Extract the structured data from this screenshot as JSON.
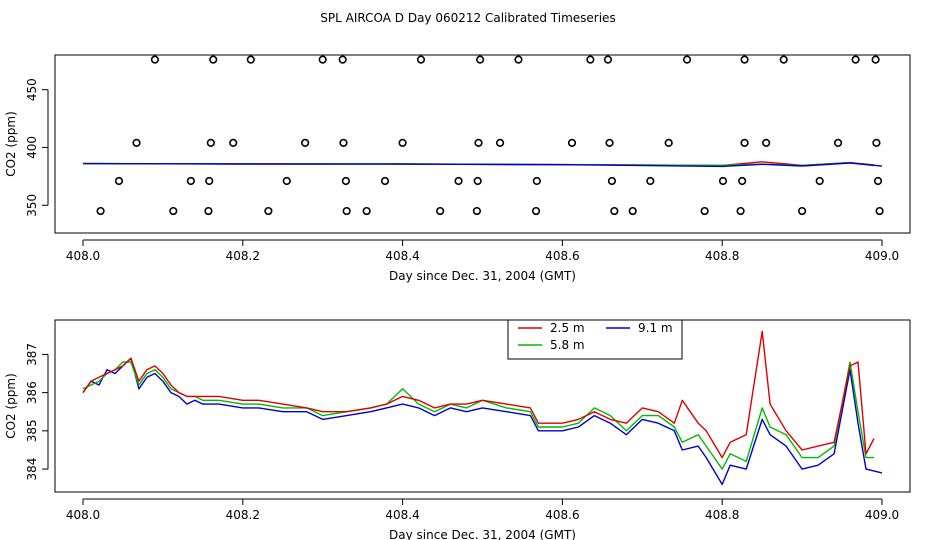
{
  "figure": {
    "title": "SPL AIRCOA D  Day 060212  Calibrated Timeseries"
  },
  "colors": {
    "2.5 m": "#dd0000",
    "5.8 m": "#00bb00",
    "9.1 m": "#0000cc",
    "axis": "#000000",
    "marker": "#000000"
  },
  "chart_data": [
    {
      "type": "scatter",
      "title": "",
      "xlabel": "Day since Dec. 31, 2004 (GMT)",
      "ylabel": "CO2 (ppm)",
      "xlim": [
        408.0,
        409.0
      ],
      "ylim": [
        326,
        480
      ],
      "xticks": [
        408.0,
        408.2,
        408.4,
        408.6,
        408.8,
        409.0
      ],
      "xtick_labels": [
        "408.0",
        "408.2",
        "408.4",
        "408.6",
        "408.8",
        "409.0"
      ],
      "yticks": [
        350,
        400,
        450
      ],
      "ytick_labels": [
        "350",
        "400",
        "450"
      ],
      "grid": false,
      "point_series": [
        {
          "name": "~476 ppm markers",
          "y": 476,
          "x": [
            408.09,
            408.163,
            408.21,
            408.3,
            408.325,
            408.423,
            408.497,
            408.545,
            408.635,
            408.657,
            408.756,
            408.828,
            408.877,
            408.967,
            408.992
          ]
        },
        {
          "name": "~404 ppm markers",
          "y": 404,
          "x": [
            408.067,
            408.16,
            408.188,
            408.278,
            408.326,
            408.4,
            408.495,
            408.522,
            408.612,
            408.659,
            408.733,
            408.828,
            408.855,
            408.945,
            408.993
          ]
        },
        {
          "name": "~371 ppm markers",
          "y": 371,
          "x": [
            408.045,
            408.135,
            408.158,
            408.255,
            408.329,
            408.378,
            408.47,
            408.494,
            408.568,
            408.662,
            408.71,
            408.801,
            408.825,
            408.922,
            408.995
          ]
        },
        {
          "name": "~345 ppm markers",
          "y": 345,
          "x": [
            408.022,
            408.113,
            408.157,
            408.232,
            408.33,
            408.355,
            408.447,
            408.493,
            408.567,
            408.665,
            408.688,
            408.778,
            408.823,
            408.9,
            408.997
          ]
        }
      ],
      "series": [
        {
          "name": "2.5 m",
          "x": [
            408.0,
            408.2,
            408.4,
            408.6,
            408.8,
            408.85,
            408.9,
            408.96,
            408.99
          ],
          "y": [
            386,
            385.8,
            385.7,
            385.2,
            384.5,
            387.6,
            384.6,
            386.9,
            384.8
          ]
        },
        {
          "name": "5.8 m",
          "x": [
            408.0,
            408.2,
            408.4,
            408.6,
            408.8,
            408.85,
            408.9,
            408.96,
            408.99
          ],
          "y": [
            386,
            385.8,
            385.7,
            385.2,
            384.4,
            385.6,
            384.4,
            386.8,
            384.3
          ]
        },
        {
          "name": "9.1 m",
          "x": [
            408.0,
            408.2,
            408.4,
            408.6,
            408.8,
            408.85,
            408.9,
            408.96,
            409.0
          ],
          "y": [
            386,
            385.7,
            385.6,
            385.1,
            383.6,
            385.4,
            384.0,
            386.6,
            383.9
          ]
        }
      ]
    },
    {
      "type": "line",
      "title": "",
      "xlabel": "Day since Dec. 31, 2004 (GMT)",
      "ylabel": "CO2 (ppm)",
      "xlim": [
        408.0,
        409.0
      ],
      "ylim": [
        383.4,
        387.9
      ],
      "xticks": [
        408.0,
        408.2,
        408.4,
        408.6,
        408.8,
        409.0
      ],
      "xtick_labels": [
        "408.0",
        "408.2",
        "408.4",
        "408.6",
        "408.8",
        "409.0"
      ],
      "yticks": [
        384,
        385,
        386,
        387
      ],
      "ytick_labels": [
        "384",
        "385",
        "386",
        "387"
      ],
      "grid": false,
      "legend": {
        "placement": "top-center",
        "entries": [
          "2.5 m",
          "5.8 m",
          "9.1 m"
        ]
      },
      "series": [
        {
          "name": "9.1 m",
          "x": [
            408.0,
            408.01,
            408.02,
            408.03,
            408.04,
            408.05,
            408.06,
            408.07,
            408.08,
            408.09,
            408.1,
            408.11,
            408.12,
            408.13,
            408.14,
            408.15,
            408.17,
            408.2,
            408.22,
            408.25,
            408.28,
            408.3,
            408.33,
            408.36,
            408.38,
            408.4,
            408.42,
            408.44,
            408.46,
            408.48,
            408.5,
            408.53,
            408.56,
            408.57,
            408.6,
            408.62,
            408.64,
            408.66,
            408.68,
            408.7,
            408.72,
            408.74,
            408.75,
            408.77,
            408.78,
            408.8,
            408.81,
            408.83,
            408.85,
            408.86,
            408.88,
            408.9,
            408.92,
            408.94,
            408.96,
            408.97,
            408.98,
            409.0
          ],
          "y": [
            386.0,
            386.3,
            386.2,
            386.6,
            386.5,
            386.7,
            386.9,
            386.1,
            386.4,
            386.5,
            386.3,
            386.0,
            385.9,
            385.7,
            385.8,
            385.7,
            385.7,
            385.6,
            385.6,
            385.5,
            385.5,
            385.3,
            385.4,
            385.5,
            385.6,
            385.7,
            385.6,
            385.4,
            385.6,
            385.5,
            385.6,
            385.5,
            385.4,
            385.0,
            385.0,
            385.1,
            385.4,
            385.2,
            384.9,
            385.3,
            385.2,
            385.0,
            384.5,
            384.6,
            384.3,
            383.6,
            384.1,
            384.0,
            385.3,
            384.9,
            384.6,
            384.0,
            384.1,
            384.4,
            386.6,
            385.2,
            384.0,
            383.9
          ]
        },
        {
          "name": "5.8 m",
          "x": [
            408.0,
            408.01,
            408.02,
            408.03,
            408.04,
            408.05,
            408.06,
            408.07,
            408.08,
            408.09,
            408.1,
            408.11,
            408.12,
            408.13,
            408.14,
            408.15,
            408.17,
            408.2,
            408.22,
            408.25,
            408.28,
            408.3,
            408.33,
            408.36,
            408.38,
            408.4,
            408.42,
            408.44,
            408.46,
            408.48,
            408.5,
            408.53,
            408.56,
            408.57,
            408.6,
            408.62,
            408.64,
            408.66,
            408.68,
            408.7,
            408.72,
            408.74,
            408.75,
            408.77,
            408.78,
            408.8,
            408.81,
            408.83,
            408.85,
            408.86,
            408.88,
            408.9,
            408.92,
            408.94,
            408.96,
            408.97,
            408.98,
            408.99
          ],
          "y": [
            386.1,
            386.2,
            386.3,
            386.5,
            386.6,
            386.8,
            386.8,
            386.2,
            386.5,
            386.6,
            386.4,
            386.1,
            386.0,
            385.9,
            385.9,
            385.8,
            385.8,
            385.7,
            385.7,
            385.6,
            385.6,
            385.4,
            385.5,
            385.6,
            385.7,
            386.1,
            385.7,
            385.5,
            385.7,
            385.6,
            385.8,
            385.6,
            385.5,
            385.1,
            385.1,
            385.2,
            385.6,
            385.4,
            385.0,
            385.4,
            385.4,
            385.1,
            384.7,
            384.9,
            384.6,
            384.0,
            384.4,
            384.2,
            385.6,
            385.1,
            384.9,
            384.3,
            384.3,
            384.6,
            386.8,
            385.5,
            384.3,
            384.3
          ]
        },
        {
          "name": "2.5 m",
          "x": [
            408.0,
            408.01,
            408.02,
            408.03,
            408.04,
            408.05,
            408.06,
            408.07,
            408.08,
            408.09,
            408.1,
            408.11,
            408.12,
            408.13,
            408.14,
            408.15,
            408.17,
            408.2,
            408.22,
            408.25,
            408.28,
            408.3,
            408.33,
            408.36,
            408.38,
            408.4,
            408.42,
            408.44,
            408.46,
            408.48,
            408.5,
            408.53,
            408.56,
            408.57,
            408.6,
            408.62,
            408.64,
            408.66,
            408.68,
            408.7,
            408.72,
            408.74,
            408.75,
            408.77,
            408.78,
            408.8,
            408.81,
            408.83,
            408.85,
            408.86,
            408.88,
            408.9,
            408.92,
            408.94,
            408.96,
            408.97,
            408.98,
            408.99
          ],
          "y": [
            386.0,
            386.3,
            386.4,
            386.5,
            386.6,
            386.7,
            386.9,
            386.3,
            386.6,
            386.7,
            386.5,
            386.2,
            386.0,
            385.9,
            385.9,
            385.9,
            385.9,
            385.8,
            385.8,
            385.7,
            385.6,
            385.5,
            385.5,
            385.6,
            385.7,
            385.9,
            385.8,
            385.6,
            385.7,
            385.7,
            385.8,
            385.7,
            385.6,
            385.2,
            385.2,
            385.3,
            385.5,
            385.3,
            385.2,
            385.6,
            385.5,
            385.2,
            385.8,
            385.2,
            385.0,
            384.3,
            384.7,
            384.9,
            387.6,
            385.7,
            385.0,
            384.5,
            384.6,
            384.7,
            386.7,
            386.8,
            384.4,
            384.8
          ]
        }
      ]
    }
  ]
}
